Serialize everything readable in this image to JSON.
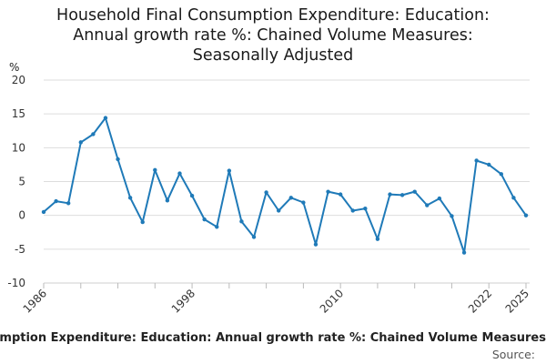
{
  "title_lines": [
    "Household Final Consumption Expenditure: Education:",
    "Annual growth rate %: Chained Volume Measures:",
    "Seasonally Adjusted"
  ],
  "legend_label": "Household Final Consumption Expenditure: Education: Annual growth rate %: Chained Volume Measures",
  "source_label": "Source:",
  "chart_data": {
    "type": "line",
    "title": "Household Final Consumption Expenditure: Education: Annual growth rate %: Chained Volume Measures: Seasonally Adjusted",
    "ylabel": "%",
    "ylim": [
      -10,
      20
    ],
    "yticks": [
      -10,
      -5,
      0,
      5,
      10,
      15,
      20
    ],
    "xlim": [
      1986,
      2025
    ],
    "xticks": [
      1986,
      1998,
      2010,
      2022,
      2025
    ],
    "grid": "horizontal",
    "legend": "bottom",
    "color": "#1f7ab8",
    "series": [
      {
        "name": "Household Final Consumption Expenditure: Education: Annual growth rate %: Chained Volume Measures",
        "x": [
          1986,
          1987,
          1988,
          1989,
          1990,
          1991,
          1992,
          1993,
          1994,
          1995,
          1996,
          1997,
          1998,
          1999,
          2000,
          2001,
          2002,
          2003,
          2004,
          2005,
          2006,
          2007,
          2008,
          2009,
          2010,
          2011,
          2012,
          2013,
          2014,
          2015,
          2016,
          2017,
          2018,
          2019,
          2020,
          2021,
          2022,
          2023,
          2024,
          2025
        ],
        "values": [
          0.5,
          2.1,
          1.8,
          10.8,
          12.0,
          14.4,
          8.3,
          2.6,
          -1.0,
          6.7,
          2.2,
          6.2,
          2.9,
          -0.6,
          -1.7,
          6.6,
          -0.9,
          -3.2,
          3.4,
          0.7,
          2.6,
          1.9,
          -4.3,
          3.5,
          3.1,
          0.7,
          1.0,
          -3.5,
          3.1,
          3.0,
          3.5,
          1.5,
          2.5,
          -0.1,
          -5.5,
          8.1,
          7.5,
          6.1,
          2.6,
          0.0
        ]
      }
    ]
  }
}
